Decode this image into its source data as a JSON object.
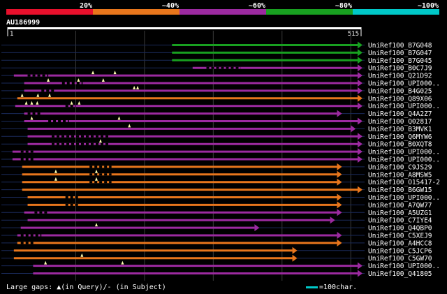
{
  "chart_data": {
    "type": "alignment-overview",
    "query_id": "AU186999",
    "query_length": 515,
    "axis": {
      "start_label": "1",
      "end_label": "515"
    },
    "identity_scale": [
      {
        "label": "20%",
        "color": "#e8102c"
      },
      {
        "label": "~40%",
        "color": "#e8761c"
      },
      {
        "label": "~60%",
        "color": "#9c2aa0"
      },
      {
        "label": "~80%",
        "color": "#18a020"
      },
      {
        "label": "~100%",
        "color": "#00c8c8"
      }
    ],
    "hits": [
      {
        "name": "UniRef100_B7G048",
        "start": 240,
        "end": 532,
        "color": "green",
        "arrow": "right",
        "gaps": [],
        "query_gaps": []
      },
      {
        "name": "UniRef100_B7G047",
        "start": 240,
        "end": 532,
        "color": "green",
        "arrow": "right",
        "gaps": [],
        "query_gaps": []
      },
      {
        "name": "UniRef100_B7G045",
        "start": 240,
        "end": 532,
        "color": "green",
        "arrow": "right",
        "gaps": [],
        "query_gaps": []
      },
      {
        "name": "UniRef100_B0C7J9",
        "start": 270,
        "end": 532,
        "color": "purple",
        "arrow": "right",
        "gaps": [
          [
            290,
            340
          ]
        ],
        "query_gaps": []
      },
      {
        "name": "UniRef100_Q21D92",
        "start": 10,
        "end": 532,
        "color": "purple",
        "arrow": "right",
        "gaps": [
          [
            30,
            60
          ]
        ],
        "query_gaps": [
          125,
          157
        ]
      },
      {
        "name": "UniRef100_UPI000..",
        "start": 25,
        "end": 532,
        "color": "purple",
        "arrow": "right",
        "gaps": [
          [
            80,
            110
          ]
        ],
        "query_gaps": [
          60,
          104,
          140
        ]
      },
      {
        "name": "UniRef100_B4G025",
        "start": 25,
        "end": 532,
        "color": "purple",
        "arrow": "right",
        "gaps": [
          [
            50,
            70
          ]
        ],
        "query_gaps": [
          185,
          190
        ]
      },
      {
        "name": "UniRef100_Q89X06",
        "start": 15,
        "end": 532,
        "color": "orange",
        "arrow": "right",
        "gaps": [],
        "query_gaps": [
          22,
          45,
          62
        ]
      },
      {
        "name": "UniRef100_UPI000..",
        "start": 12,
        "end": 532,
        "color": "purple",
        "arrow": "right",
        "gaps": [
          [
            85,
            100
          ]
        ],
        "query_gaps": [
          28,
          36,
          44,
          94,
          105
        ]
      },
      {
        "name": "UniRef100_Q4A2Z7",
        "start": 25,
        "end": 480,
        "color": "purple",
        "arrow": "right",
        "gaps": [
          [
            30,
            50
          ]
        ],
        "query_gaps": []
      },
      {
        "name": "UniRef100_Q02817",
        "start": 25,
        "end": 532,
        "color": "purple",
        "arrow": "right",
        "gaps": [
          [
            60,
            90
          ]
        ],
        "query_gaps": [
          36,
          163
        ]
      },
      {
        "name": "UniRef100_B3MVK1",
        "start": 30,
        "end": 500,
        "color": "purple",
        "arrow": "right",
        "gaps": [],
        "query_gaps": [
          178
        ]
      },
      {
        "name": "UniRef100_Q6MYW6",
        "start": 30,
        "end": 532,
        "color": "purple",
        "arrow": "right",
        "gaps": [
          [
            65,
            150
          ]
        ],
        "query_gaps": []
      },
      {
        "name": "UniRef100_B0XQT8",
        "start": 30,
        "end": 532,
        "color": "purple",
        "arrow": "right",
        "gaps": [
          [
            65,
            150
          ]
        ],
        "query_gaps": [
          136
        ]
      },
      {
        "name": "UniRef100_UPI000..",
        "start": 8,
        "end": 532,
        "color": "purple",
        "arrow": "right",
        "gaps": [
          [
            20,
            40
          ]
        ],
        "query_gaps": []
      },
      {
        "name": "UniRef100_UPI000..",
        "start": 8,
        "end": 532,
        "color": "purple",
        "arrow": "right",
        "gaps": [
          [
            20,
            40
          ]
        ],
        "query_gaps": []
      },
      {
        "name": "UniRef100_C9JS29",
        "start": 22,
        "end": 480,
        "color": "orange",
        "arrow": "right",
        "gaps": [
          [
            120,
            152
          ]
        ],
        "query_gaps": []
      },
      {
        "name": "UniRef100_A8MSW5",
        "start": 22,
        "end": 480,
        "color": "orange",
        "arrow": "right",
        "gaps": [
          [
            120,
            152
          ]
        ],
        "query_gaps": [
          71,
          130
        ]
      },
      {
        "name": "UniRef100_O15417-2",
        "start": 22,
        "end": 480,
        "color": "orange",
        "arrow": "right",
        "gaps": [
          [
            120,
            152
          ]
        ],
        "query_gaps": [
          71,
          130
        ]
      },
      {
        "name": "UniRef100_B6GW15",
        "start": 22,
        "end": 532,
        "color": "orange",
        "arrow": "right",
        "gaps": [],
        "query_gaps": []
      },
      {
        "name": "UniRef100_UPI000..",
        "start": 30,
        "end": 480,
        "color": "orange",
        "arrow": "right",
        "gaps": [
          [
            85,
            105
          ]
        ],
        "query_gaps": []
      },
      {
        "name": "UniRef100_A7QW77",
        "start": 30,
        "end": 480,
        "color": "orange",
        "arrow": "right",
        "gaps": [
          [
            85,
            105
          ]
        ],
        "query_gaps": []
      },
      {
        "name": "UniRef100_A5UZG1",
        "start": 25,
        "end": 480,
        "color": "purple",
        "arrow": "right",
        "gaps": [
          [
            40,
            60
          ]
        ],
        "query_gaps": []
      },
      {
        "name": "UniRef100_C7IYE4",
        "start": 30,
        "end": 470,
        "color": "purple",
        "arrow": "right",
        "gaps": [],
        "query_gaps": []
      },
      {
        "name": "UniRef100_Q4QBP0",
        "start": 20,
        "end": 360,
        "color": "purple",
        "arrow": "right",
        "gaps": [],
        "query_gaps": [
          130
        ]
      },
      {
        "name": "UniRef100_C5XEJ9",
        "start": 15,
        "end": 480,
        "color": "purple",
        "arrow": "right",
        "gaps": [
          [
            20,
            50
          ]
        ],
        "query_gaps": []
      },
      {
        "name": "UniRef100_A4HCC8",
        "start": 15,
        "end": 480,
        "color": "orange",
        "arrow": "right",
        "gaps": [
          [
            20,
            40
          ]
        ],
        "query_gaps": []
      },
      {
        "name": "UniRef100_C5JCP6",
        "start": 10,
        "end": 415,
        "color": "orange",
        "arrow": "right",
        "gaps": [],
        "query_gaps": []
      },
      {
        "name": "UniRef100_C5GW70",
        "start": 10,
        "end": 415,
        "color": "orange",
        "arrow": "right",
        "gaps": [],
        "query_gaps": [
          109
        ]
      },
      {
        "name": "UniRef100_UPI000..",
        "start": 38,
        "end": 515,
        "color": "purple",
        "arrow": "right",
        "gaps": [],
        "query_gaps": [
          56,
          168
        ]
      },
      {
        "name": "UniRef100_Q41805",
        "start": 38,
        "end": 515,
        "color": "purple",
        "arrow": "right",
        "gaps": [],
        "query_gaps": []
      }
    ],
    "footer": {
      "gaps_label": "Large gaps:",
      "gaps_query": "(in Query)/",
      "gaps_subject": "(in Subject)",
      "scale_label": "=100char."
    }
  }
}
